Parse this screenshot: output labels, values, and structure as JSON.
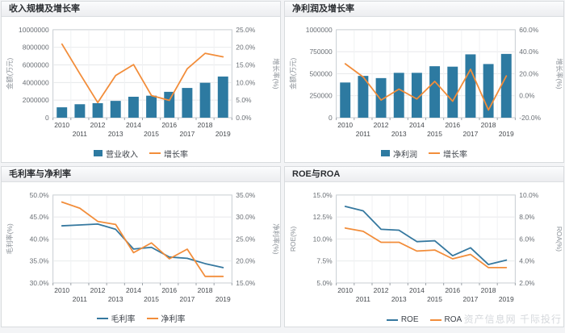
{
  "page": {
    "watermark": "资产信息网 千际投行"
  },
  "chart_data": [
    {
      "type": "bar-line",
      "title": "收入规模及增长率",
      "categories": [
        "2010",
        "2011",
        "2012",
        "2013",
        "2014",
        "2015",
        "2016",
        "2017",
        "2018",
        "2019"
      ],
      "left_axis": {
        "title": "金额(万元)",
        "min": 0,
        "max": 10000000,
        "tick_labels": [
          "0",
          "2000000",
          "4000000",
          "6000000",
          "8000000",
          "10000000"
        ]
      },
      "right_axis": {
        "title": "增长率(%)",
        "min": 0,
        "max": 25,
        "tick_labels": [
          "0.0%",
          "5.0%",
          "10.0%",
          "15.0%",
          "20.0%",
          "25.0%"
        ]
      },
      "series": [
        {
          "name": "营业收入",
          "type": "bar",
          "axis": "left",
          "color": "#2d7aa1",
          "values": [
            1180000,
            1530000,
            1650000,
            1910000,
            2380000,
            2500000,
            2940000,
            3380000,
            3970000,
            4680000
          ]
        },
        {
          "name": "增长率",
          "type": "line",
          "axis": "right",
          "color": "#f28d3a",
          "values": [
            20.9,
            12.5,
            4.3,
            12.0,
            15.1,
            6.3,
            4.9,
            13.9,
            18.3,
            17.3
          ]
        }
      ],
      "legend_position": "bottom",
      "grid": true
    },
    {
      "type": "bar-line",
      "title": "净利润及增长率",
      "categories": [
        "2010",
        "2011",
        "2012",
        "2013",
        "2014",
        "2015",
        "2016",
        "2017",
        "2018",
        "2019"
      ],
      "left_axis": {
        "title": "金额(万元)",
        "min": 0,
        "max": 1000000,
        "tick_labels": [
          "0",
          "250000",
          "500000",
          "750000",
          "1000000"
        ]
      },
      "right_axis": {
        "title": "增长率(%)",
        "min": -20,
        "max": 60,
        "tick_labels": [
          "-20.0%",
          "0.0%",
          "20.0%",
          "40.0%",
          "60.0%"
        ]
      },
      "series": [
        {
          "name": "净利润",
          "type": "bar",
          "axis": "left",
          "color": "#2d7aa1",
          "values": [
            400000,
            475000,
            450000,
            510000,
            510000,
            585000,
            580000,
            720000,
            610000,
            725000
          ]
        },
        {
          "name": "增长率",
          "type": "line",
          "axis": "right",
          "color": "#f28d3a",
          "values": [
            29,
            17,
            -4,
            6,
            -3,
            13,
            -5,
            24,
            -13,
            18
          ]
        }
      ],
      "legend_position": "bottom",
      "grid": true
    },
    {
      "type": "line",
      "title": "毛利率与净利率",
      "categories": [
        "2010",
        "2011",
        "2012",
        "2013",
        "2014",
        "2015",
        "2016",
        "2017",
        "2018",
        "2019"
      ],
      "left_axis": {
        "title": "毛利率(%)",
        "min": 30,
        "max": 50,
        "tick_labels": [
          "30.0%",
          "35.0%",
          "40.0%",
          "45.0%",
          "50.0%"
        ]
      },
      "right_axis": {
        "title": "净利率(%)",
        "min": 15,
        "max": 35,
        "tick_labels": [
          "15.0%",
          "20.0%",
          "25.0%",
          "30.0%",
          "35.0%"
        ]
      },
      "series": [
        {
          "name": "毛利率",
          "type": "line",
          "axis": "left",
          "color": "#35789f",
          "values": [
            43.0,
            43.2,
            43.4,
            42.2,
            37.7,
            38.1,
            35.9,
            35.6,
            34.4,
            33.5
          ]
        },
        {
          "name": "净利率",
          "type": "line",
          "axis": "right",
          "color": "#f28d3a",
          "values": [
            33.4,
            32.0,
            29.0,
            28.3,
            21.9,
            24.1,
            20.5,
            22.7,
            16.5,
            16.5
          ]
        }
      ],
      "legend_position": "bottom",
      "grid": true
    },
    {
      "type": "line",
      "title": "ROE与ROA",
      "categories": [
        "2010",
        "2011",
        "2012",
        "2013",
        "2014",
        "2015",
        "2016",
        "2017",
        "2018",
        "2019"
      ],
      "left_axis": {
        "title": "ROE(%)",
        "min": 5,
        "max": 15,
        "tick_labels": [
          "5.0%",
          "7.5%",
          "10.0%",
          "12.5%",
          "15.0%"
        ]
      },
      "right_axis": {
        "title": "ROA(%)",
        "min": 2,
        "max": 10,
        "tick_labels": [
          "2.0%",
          "4.0%",
          "6.0%",
          "8.0%",
          "10.0%"
        ]
      },
      "series": [
        {
          "name": "ROE",
          "type": "line",
          "axis": "left",
          "color": "#35789f",
          "values": [
            13.7,
            13.2,
            11.1,
            11.0,
            9.7,
            9.8,
            8.1,
            9.0,
            7.1,
            7.6
          ]
        },
        {
          "name": "ROA",
          "type": "line",
          "axis": "right",
          "color": "#f28d3a",
          "values": [
            7.0,
            6.7,
            5.7,
            5.7,
            4.9,
            5.0,
            4.2,
            4.6,
            3.4,
            3.4
          ]
        }
      ],
      "legend_position": "bottom",
      "grid": true
    }
  ]
}
